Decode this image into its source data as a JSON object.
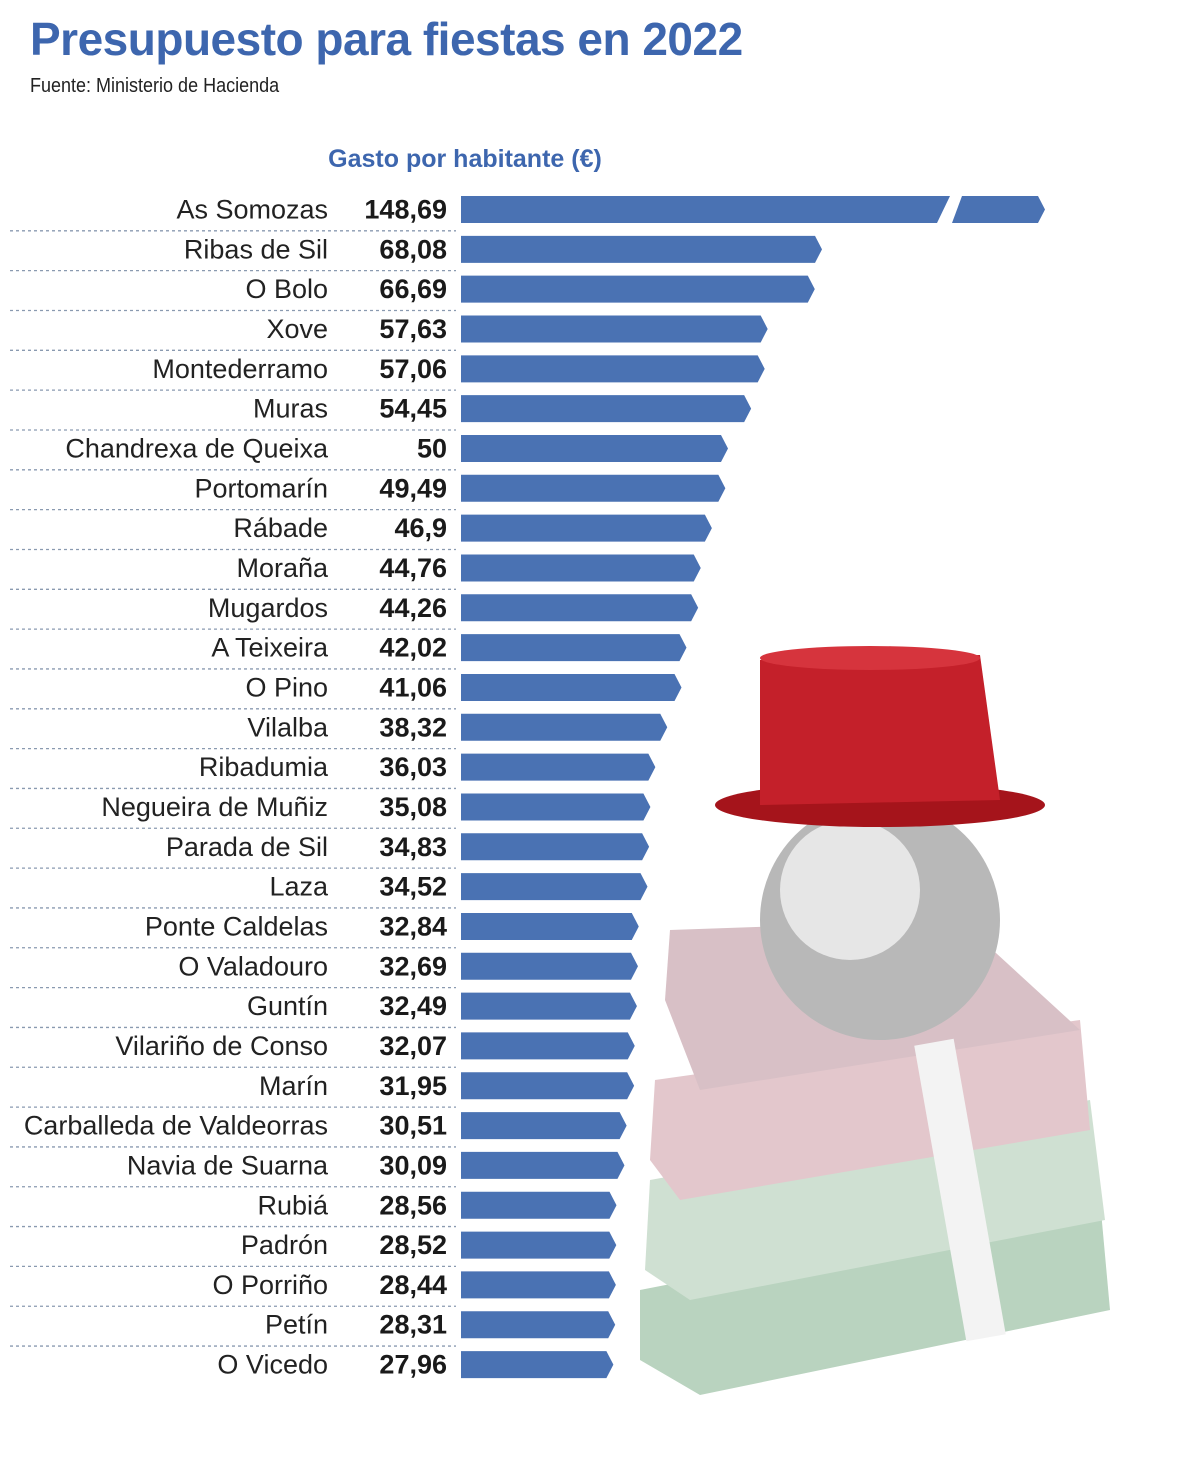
{
  "chart_data": {
    "type": "bar",
    "orientation": "horizontal",
    "title": "Presupuesto para fiestas en 2022",
    "subtitle": "Fuente: Ministerio de Hacienda",
    "xlabel": "Gasto por habitante (€)",
    "bar_color": "#4a72b3",
    "title_color": "#3d66ae",
    "axis_break": "As Somozas bar truncated",
    "categories": [
      "As Somozas",
      "Ribas de Sil",
      "O Bolo",
      "Xove",
      "Montederramo",
      "Muras",
      "Chandrexa de Queixa",
      "Portomarín",
      "Rábade",
      "Moraña",
      "Mugardos",
      "A Teixeira",
      "O Pino",
      "Vilalba",
      "Ribadumia",
      "Negueira de Muñiz",
      "Parada de Sil",
      "Laza",
      "Ponte Caldelas",
      "O Valadouro",
      "Guntín",
      "Vilariño de Conso",
      "Marín",
      "Carballeda de Valdeorras",
      "Navia de Suarna",
      "Rubiá",
      "Padrón",
      "O Porriño",
      "Petín",
      "O Vicedo"
    ],
    "values": [
      148.69,
      68.08,
      66.69,
      57.63,
      57.06,
      54.45,
      50,
      49.49,
      46.9,
      44.76,
      44.26,
      42.02,
      41.06,
      38.32,
      36.03,
      35.08,
      34.83,
      34.52,
      32.84,
      32.69,
      32.49,
      32.07,
      31.95,
      30.51,
      30.09,
      28.56,
      28.52,
      28.44,
      28.31,
      27.96
    ],
    "value_labels": [
      "148,69",
      "68,08",
      "66,69",
      "57,63",
      "57,06",
      "54,45",
      "50",
      "49,49",
      "46,9",
      "44,76",
      "44,26",
      "42,02",
      "41,06",
      "38,32",
      "36,03",
      "35,08",
      "34,83",
      "34,52",
      "32,84",
      "32,69",
      "32,49",
      "32,07",
      "31,95",
      "30,51",
      "30,09",
      "28,56",
      "28,52",
      "28,44",
      "28,31",
      "27,96"
    ]
  }
}
